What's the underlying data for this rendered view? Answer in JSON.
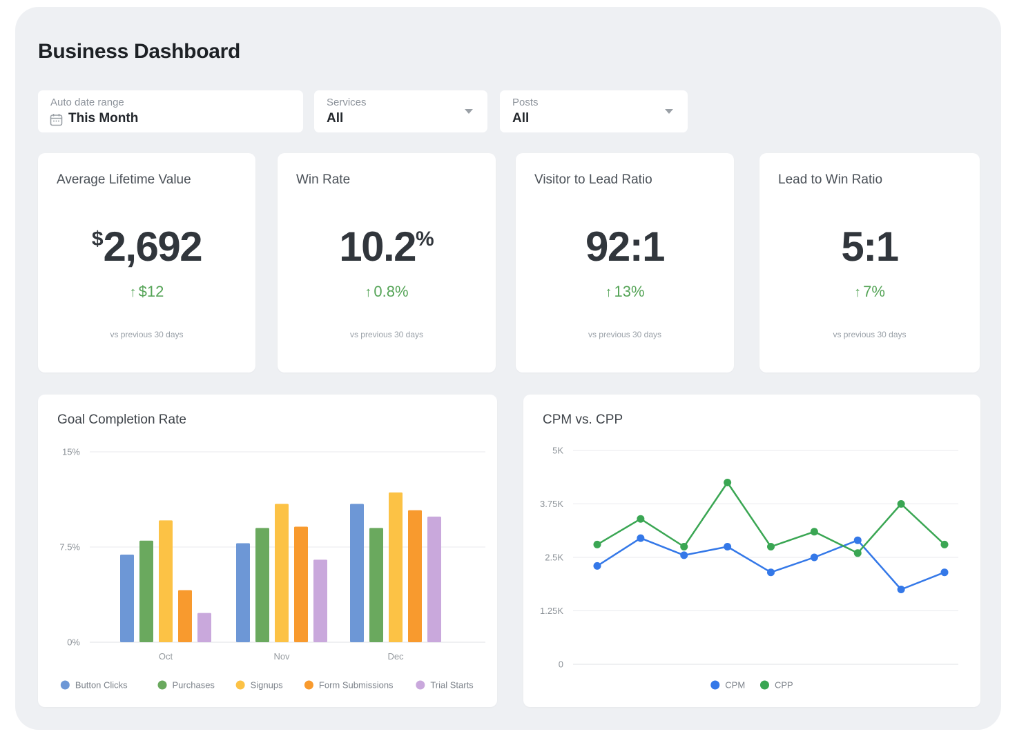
{
  "page": {
    "title": "Business Dashboard"
  },
  "icons": {
    "up_arrow": "↑"
  },
  "colors": {
    "panel_bg": "#eef0f3",
    "card_bg": "#ffffff",
    "delta_up": "#55a457"
  },
  "filters": {
    "date": {
      "label": "Auto date range",
      "value": "This Month"
    },
    "services": {
      "label": "Services",
      "value": "All"
    },
    "posts": {
      "label": "Posts",
      "value": "All"
    }
  },
  "kpis": [
    {
      "title": "Average Lifetime Value",
      "prefix": "$",
      "value": "2,692",
      "suffix": "",
      "delta": "$12",
      "delta_direction": "up",
      "comparison": "vs previous 30 days"
    },
    {
      "title": "Win Rate",
      "prefix": "",
      "value": "10.2",
      "suffix": "%",
      "delta": "0.8%",
      "delta_direction": "up",
      "comparison": "vs previous 30 days"
    },
    {
      "title": "Visitor to Lead Ratio",
      "prefix": "",
      "value": "92:1",
      "suffix": "",
      "delta": "13%",
      "delta_direction": "up",
      "comparison": "vs previous 30 days"
    },
    {
      "title": "Lead to Win Ratio",
      "prefix": "",
      "value": "5:1",
      "suffix": "",
      "delta": "7%",
      "delta_direction": "up",
      "comparison": "vs previous 30 days"
    }
  ],
  "chart_data": [
    {
      "type": "bar",
      "title": "Goal Completion Rate",
      "categories": [
        "Oct",
        "Nov",
        "Dec"
      ],
      "series": [
        {
          "name": "Button Clicks",
          "color": "#6d97d6",
          "values": [
            6.9,
            7.8,
            10.9
          ]
        },
        {
          "name": "Purchases",
          "color": "#6aa95e",
          "values": [
            8.0,
            9.0,
            9.0
          ]
        },
        {
          "name": "Signups",
          "color": "#fcc245",
          "values": [
            9.6,
            10.9,
            11.8
          ]
        },
        {
          "name": "Form Submissions",
          "color": "#f89a2e",
          "values": [
            4.1,
            9.1,
            10.4
          ]
        },
        {
          "name": "Trial Starts",
          "color": "#c9a8dc",
          "values": [
            2.3,
            6.5,
            9.9
          ]
        }
      ],
      "xlabel": "",
      "ylabel": "",
      "ylim": [
        0,
        15
      ],
      "yticks": [
        {
          "value": 0,
          "label": "0%"
        },
        {
          "value": 7.5,
          "label": "7.5%"
        },
        {
          "value": 15,
          "label": "15%"
        }
      ],
      "grid": true,
      "legend_position": "bottom"
    },
    {
      "type": "line",
      "title": "CPM vs. CPP",
      "x": [
        1,
        2,
        3,
        4,
        5,
        6,
        7,
        8,
        9
      ],
      "series": [
        {
          "name": "CPM",
          "color": "#3478e8",
          "values": [
            2300,
            2950,
            2550,
            2750,
            2150,
            2500,
            2900,
            1750,
            2150
          ]
        },
        {
          "name": "CPP",
          "color": "#3aa653",
          "values": [
            2800,
            3400,
            2750,
            4250,
            2750,
            3100,
            2600,
            3750,
            2800
          ]
        }
      ],
      "xlabel": "",
      "ylabel": "",
      "ylim": [
        0,
        5000
      ],
      "yticks": [
        {
          "value": 0,
          "label": "0"
        },
        {
          "value": 1250,
          "label": "1.25K"
        },
        {
          "value": 2500,
          "label": "2.5K"
        },
        {
          "value": 3750,
          "label": "3.75K"
        },
        {
          "value": 5000,
          "label": "5K"
        }
      ],
      "grid": true,
      "legend_position": "bottom"
    }
  ]
}
